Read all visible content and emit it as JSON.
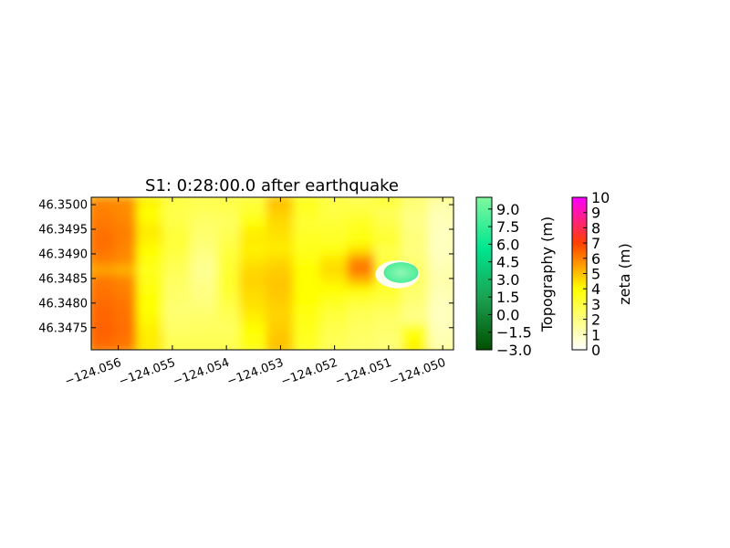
{
  "chart_data": {
    "type": "heatmap",
    "title": "S1: 0:28:00.0 after earthquake",
    "xlabel": "",
    "ylabel": "",
    "xlim": [
      -124.0565,
      -124.0498
    ],
    "ylim": [
      46.34705,
      46.35015
    ],
    "x_ticks": [
      {
        "value": -124.056,
        "label": "−124.056"
      },
      {
        "value": -124.055,
        "label": "−124.055"
      },
      {
        "value": -124.054,
        "label": "−124.054"
      },
      {
        "value": -124.053,
        "label": "−124.053"
      },
      {
        "value": -124.052,
        "label": "−124.052"
      },
      {
        "value": -124.051,
        "label": "−124.051"
      },
      {
        "value": -124.05,
        "label": "−124.050"
      }
    ],
    "y_ticks": [
      {
        "value": 46.3475,
        "label": "46.3475"
      },
      {
        "value": 46.348,
        "label": "46.3480"
      },
      {
        "value": 46.3485,
        "label": "46.3485"
      },
      {
        "value": 46.349,
        "label": "46.3490"
      },
      {
        "value": 46.3495,
        "label": "46.3495"
      },
      {
        "value": 46.35,
        "label": "46.3500"
      }
    ],
    "x_tick_rotation": 20,
    "grid": false,
    "zeta_field": {
      "columns_lon": [
        -124.0563,
        -124.0558,
        -124.0554,
        -124.0549,
        -124.0544,
        -124.0539,
        -124.0535,
        -124.053,
        -124.0525,
        -124.052,
        -124.0515,
        -124.051,
        -124.0505,
        -124.05
      ],
      "rows_lat": [
        46.35005,
        46.34985,
        46.34965,
        46.34945,
        46.34925,
        46.34905,
        46.34885,
        46.34865,
        46.34845,
        46.34825,
        46.34805,
        46.34785,
        46.34765,
        46.34745,
        46.34725,
        46.3471
      ],
      "values": [
        [
          5.9,
          5.8,
          4.2,
          3.0,
          2.8,
          2.9,
          3.1,
          5.0,
          3.6,
          3.0,
          2.8,
          3.2,
          2.2,
          1.4
        ],
        [
          6.0,
          5.8,
          4.0,
          2.8,
          2.6,
          2.7,
          3.2,
          4.8,
          3.4,
          2.9,
          3.0,
          2.6,
          2.0,
          1.2
        ],
        [
          6.1,
          5.9,
          4.1,
          2.9,
          2.4,
          2.5,
          3.8,
          4.6,
          3.2,
          3.1,
          3.4,
          2.8,
          1.9,
          1.1
        ],
        [
          6.2,
          6.0,
          4.3,
          3.0,
          2.3,
          2.6,
          4.2,
          4.5,
          3.3,
          3.3,
          3.6,
          3.0,
          2.0,
          1.0
        ],
        [
          6.3,
          6.0,
          4.2,
          3.1,
          2.2,
          2.8,
          4.3,
          4.4,
          3.5,
          3.4,
          3.8,
          3.2,
          2.1,
          1.0
        ],
        [
          6.2,
          5.9,
          4.0,
          3.0,
          2.0,
          3.0,
          4.2,
          4.3,
          3.6,
          3.8,
          4.5,
          2.8,
          2.0,
          1.0
        ],
        [
          6.0,
          5.8,
          3.8,
          2.8,
          1.8,
          3.1,
          4.4,
          4.6,
          3.8,
          4.4,
          5.8,
          3.0,
          2.2,
          1.1
        ],
        [
          5.4,
          5.2,
          3.6,
          2.6,
          1.7,
          3.2,
          4.6,
          4.8,
          3.9,
          4.6,
          6.2,
          3.2,
          2.3,
          1.2
        ],
        [
          6.1,
          5.9,
          3.7,
          2.5,
          1.8,
          3.3,
          4.7,
          4.9,
          4.0,
          4.3,
          5.2,
          3.4,
          2.4,
          1.3
        ],
        [
          6.2,
          6.0,
          3.8,
          2.4,
          1.9,
          3.2,
          4.6,
          4.9,
          4.0,
          4.0,
          4.1,
          3.3,
          2.3,
          1.2
        ],
        [
          6.3,
          6.1,
          3.9,
          2.3,
          2.0,
          3.0,
          4.5,
          4.8,
          3.9,
          3.6,
          3.2,
          3.0,
          2.2,
          1.1
        ],
        [
          6.4,
          6.2,
          4.0,
          2.2,
          2.2,
          2.8,
          4.4,
          4.7,
          3.8,
          3.2,
          2.8,
          2.6,
          2.0,
          1.0
        ],
        [
          6.4,
          6.2,
          4.1,
          2.3,
          2.4,
          2.6,
          4.2,
          4.7,
          3.7,
          3.0,
          2.6,
          2.4,
          1.9,
          1.0
        ],
        [
          6.5,
          6.3,
          4.2,
          2.4,
          2.5,
          2.5,
          4.0,
          4.8,
          3.6,
          2.8,
          2.5,
          2.3,
          3.5,
          1.1
        ],
        [
          6.4,
          6.2,
          4.3,
          2.6,
          2.6,
          2.6,
          3.8,
          4.9,
          3.5,
          2.7,
          2.4,
          2.2,
          4.0,
          1.2
        ],
        [
          6.3,
          6.1,
          4.3,
          2.7,
          2.7,
          2.7,
          3.7,
          5.0,
          3.4,
          2.6,
          2.3,
          2.1,
          4.2,
          1.3
        ]
      ]
    },
    "topography_patch": {
      "center_lon": -124.05077,
      "center_lat": 46.34862,
      "radius_lon": 0.00032,
      "radius_lat": 0.00021,
      "value": 7.0
    },
    "colorbars": [
      {
        "label": "Topography (m)",
        "range": [
          -3.0,
          10.0
        ],
        "ticks": [
          {
            "value": -3.0,
            "label": "−3.0"
          },
          {
            "value": -1.5,
            "label": "−1.5"
          },
          {
            "value": 0.0,
            "label": "0.0"
          },
          {
            "value": 1.5,
            "label": "1.5"
          },
          {
            "value": 3.0,
            "label": "3.0"
          },
          {
            "value": 4.5,
            "label": "4.5"
          },
          {
            "value": 6.0,
            "label": "6.0"
          },
          {
            "value": 7.5,
            "label": "7.5"
          },
          {
            "value": 9.0,
            "label": "9.0"
          }
        ],
        "colors": [
          "#005000",
          "#1aa050",
          "#00e690",
          "#80f8a0"
        ]
      },
      {
        "label": "zeta (m)",
        "range": [
          0,
          10
        ],
        "ticks": [
          {
            "value": 0,
            "label": "0"
          },
          {
            "value": 1,
            "label": "1"
          },
          {
            "value": 2,
            "label": "2"
          },
          {
            "value": 3,
            "label": "3"
          },
          {
            "value": 4,
            "label": "4"
          },
          {
            "value": 5,
            "label": "5"
          },
          {
            "value": 6,
            "label": "6"
          },
          {
            "value": 7,
            "label": "7"
          },
          {
            "value": 8,
            "label": "8"
          },
          {
            "value": 9,
            "label": "9"
          },
          {
            "value": 10,
            "label": "10"
          }
        ],
        "stops": [
          {
            "value": 0,
            "color": "#ffffff"
          },
          {
            "value": 4,
            "color": "#ffff00"
          },
          {
            "value": 7,
            "color": "#ff4000"
          },
          {
            "value": 10,
            "color": "#ff00ff"
          }
        ]
      }
    ]
  }
}
